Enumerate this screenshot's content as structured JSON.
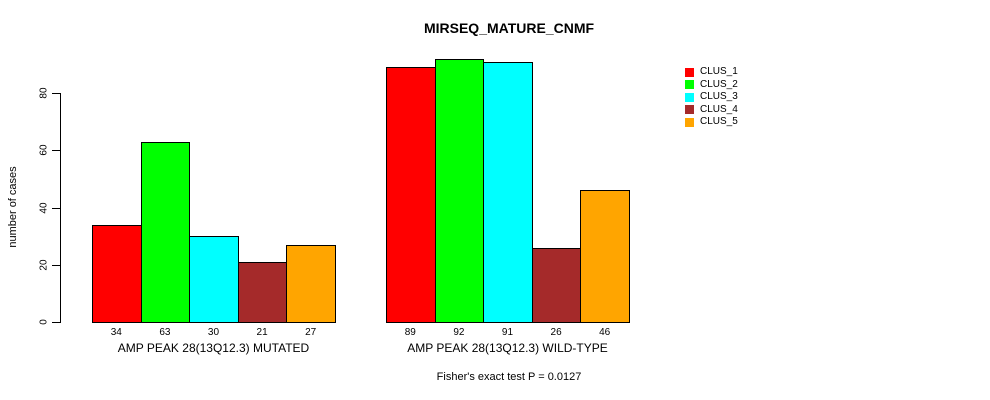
{
  "chart_data": {
    "type": "bar",
    "title": "MIRSEQ_MATURE_CNMF",
    "ylabel": "number of cases",
    "subtitle": "Fisher's exact test P = 0.0127",
    "categories": [
      "AMP PEAK 28(13Q12.3) MUTATED",
      "AMP PEAK 28(13Q12.3) WILD-TYPE"
    ],
    "series": [
      {
        "name": "CLUS_1",
        "color": "#FF0000",
        "values": [
          34,
          89
        ]
      },
      {
        "name": "CLUS_2",
        "color": "#00FF00",
        "values": [
          63,
          92
        ]
      },
      {
        "name": "CLUS_3",
        "color": "#00FFFF",
        "values": [
          30,
          91
        ]
      },
      {
        "name": "CLUS_4",
        "color": "#A52A2A",
        "values": [
          21,
          26
        ]
      },
      {
        "name": "CLUS_5",
        "color": "#FFA500",
        "values": [
          27,
          46
        ]
      }
    ],
    "bar_value_labels": [
      [
        "34",
        "63",
        "30",
        "21",
        "27"
      ],
      [
        "89",
        "92",
        "91",
        "26",
        "46"
      ]
    ],
    "yticks": [
      0,
      20,
      40,
      60,
      80
    ],
    "ylim": [
      0,
      80
    ],
    "grid": false,
    "legend_position": "right",
    "legend": [
      {
        "label": "CLUS_1",
        "color": "#FF0000"
      },
      {
        "label": "CLUS_2",
        "color": "#00FF00"
      },
      {
        "label": "CLUS_3",
        "color": "#00FFFF"
      },
      {
        "label": "CLUS_4",
        "color": "#A52A2A"
      },
      {
        "label": "CLUS_5",
        "color": "#FFA500"
      }
    ]
  }
}
